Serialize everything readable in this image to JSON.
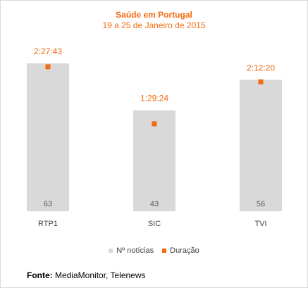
{
  "chart_data": {
    "type": "bar",
    "title": "Saúde em Portugal",
    "subtitle": "19 a 25 de Janeiro de 2015",
    "categories": [
      "RTP1",
      "SIC",
      "TVI"
    ],
    "series": [
      {
        "name": "Nº notícias",
        "type": "bar",
        "values": [
          63,
          43,
          56
        ],
        "labels": [
          "63",
          "43",
          "56"
        ]
      },
      {
        "name": "Duração",
        "type": "point",
        "values": [
          "2:27:43",
          "1:29:24",
          "2:12:20"
        ],
        "seconds": [
          8863,
          5364,
          7940
        ]
      }
    ],
    "bar_ylim": [
      0,
      75
    ],
    "duration_ylim_seconds": [
      0,
      10800
    ],
    "legend_position": "bottom",
    "grid": false
  },
  "colors": {
    "bar": "#d9d9d9",
    "accent": "#f26b0f",
    "bar_label": "#595959",
    "axis_label": "#404040"
  },
  "source": {
    "label": "Fonte:",
    "text": "MediaMonitor, Telenews"
  }
}
